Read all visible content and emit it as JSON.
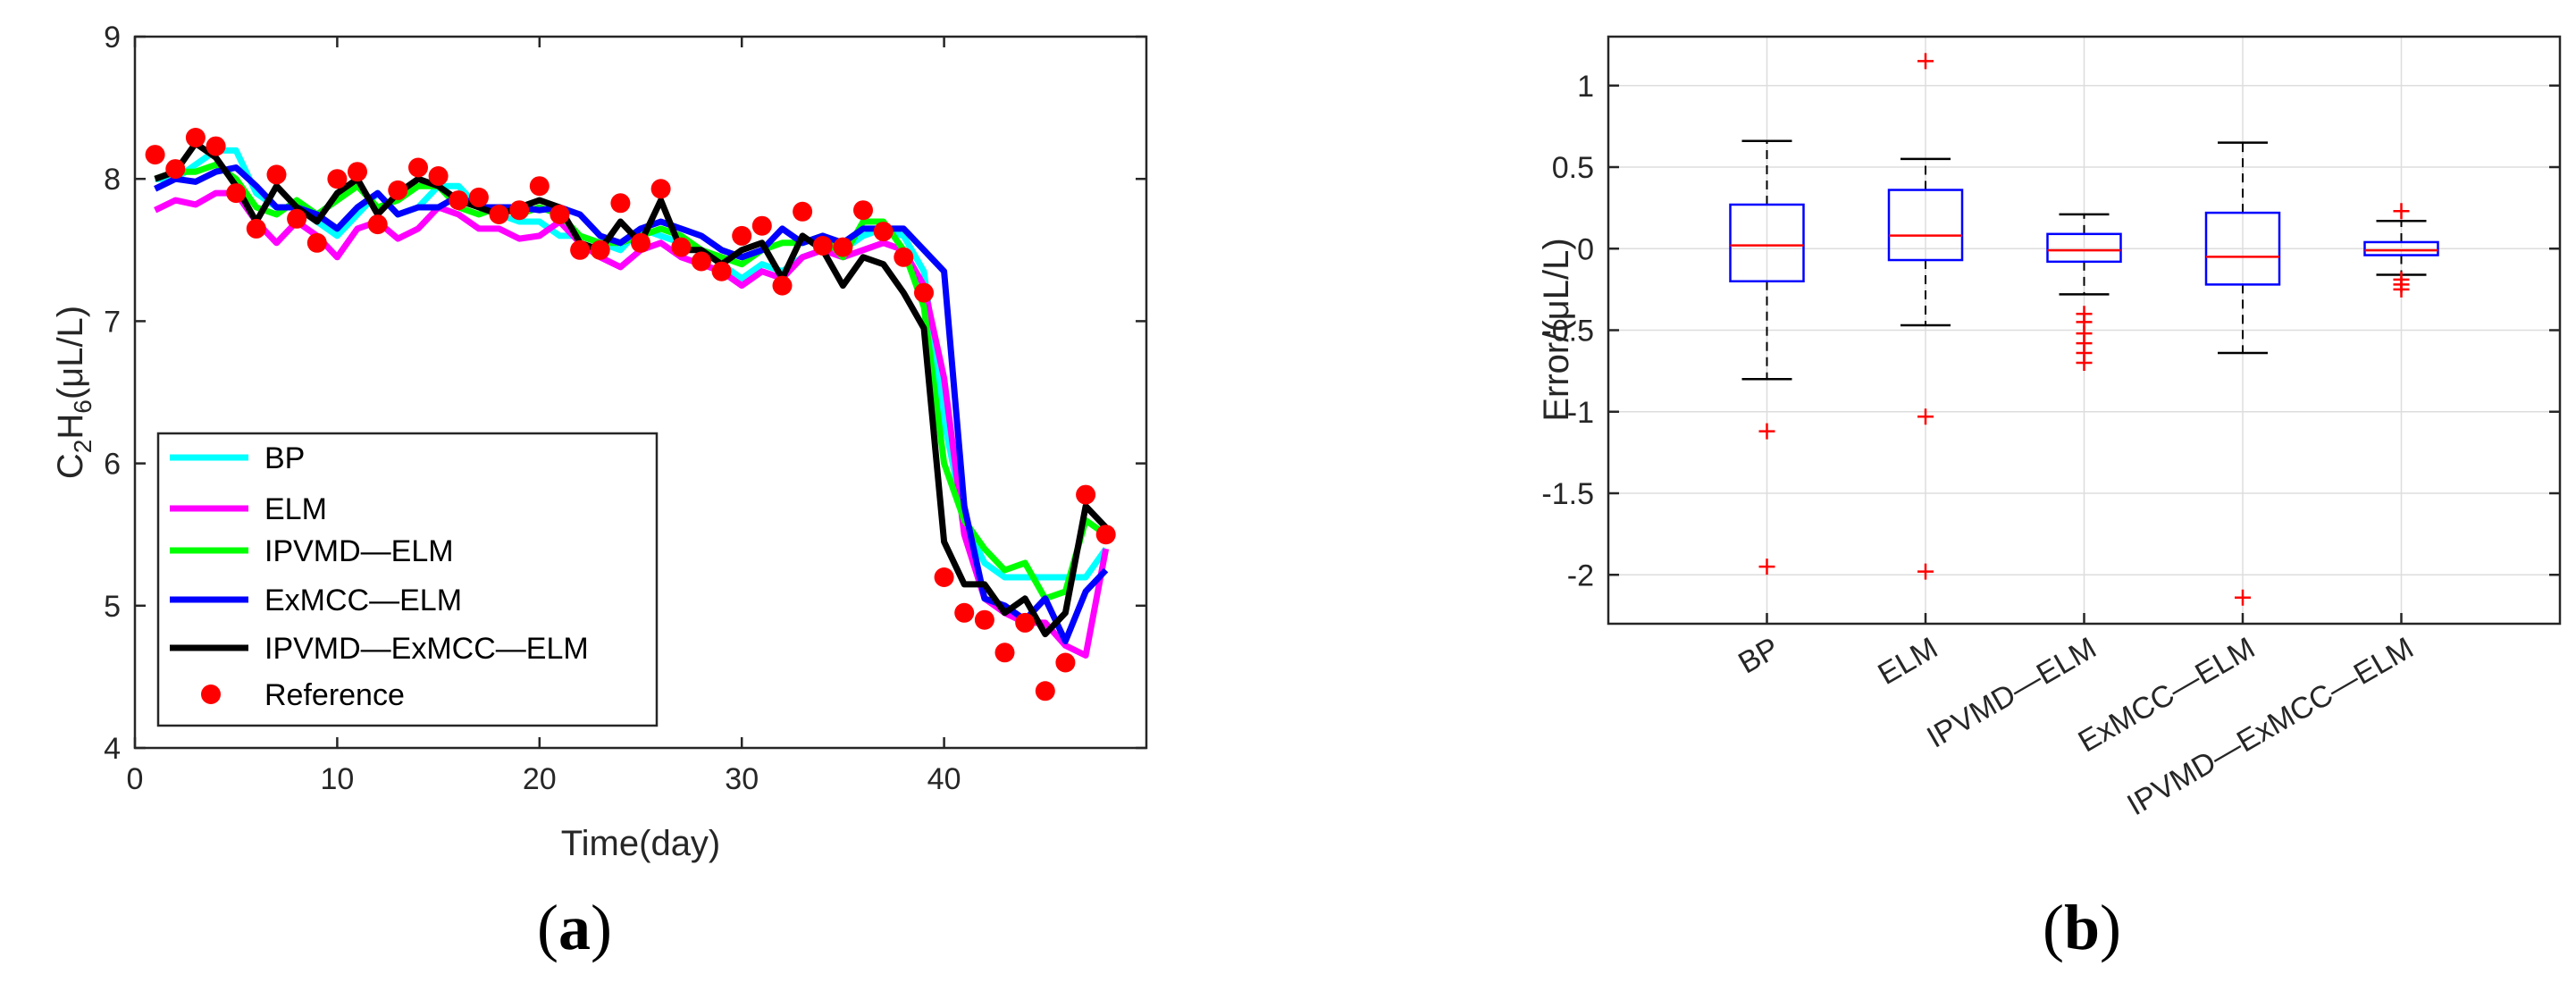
{
  "chart_data": [
    {
      "type": "line",
      "panel_label": "a",
      "xlabel": "Time(day)",
      "ylabel": {
        "base1": "C",
        "sub1": "2",
        "base2": "H",
        "sub2": "6",
        "rest": "(μL/L)"
      },
      "xlim": [
        0,
        50
      ],
      "ylim": [
        4,
        9
      ],
      "xticks": [
        0,
        10,
        20,
        30,
        40
      ],
      "yticks": [
        4,
        5,
        6,
        7,
        8,
        9
      ],
      "legend_position": "bottom-left",
      "series": [
        {
          "name": "BP",
          "color": "#00ffff",
          "x": [
            1,
            2,
            3,
            4,
            5,
            6,
            7,
            8,
            9,
            10,
            11,
            12,
            13,
            14,
            15,
            16,
            17,
            18,
            19,
            20,
            21,
            22,
            23,
            24,
            25,
            26,
            27,
            28,
            29,
            30,
            31,
            32,
            33,
            34,
            35,
            36,
            37,
            38,
            39,
            40,
            41,
            42,
            43,
            44,
            45,
            46,
            47,
            48
          ],
          "y": [
            8.0,
            8.0,
            8.1,
            8.2,
            8.2,
            7.9,
            7.8,
            7.8,
            7.7,
            7.6,
            7.75,
            7.9,
            7.75,
            7.8,
            7.95,
            7.95,
            7.8,
            7.75,
            7.7,
            7.7,
            7.6,
            7.6,
            7.55,
            7.5,
            7.65,
            7.6,
            7.55,
            7.5,
            7.4,
            7.3,
            7.4,
            7.35,
            7.45,
            7.5,
            7.5,
            7.6,
            7.65,
            7.6,
            7.35,
            6.3,
            5.6,
            5.3,
            5.2,
            5.2,
            5.2,
            5.2,
            5.2,
            5.4
          ]
        },
        {
          "name": "ELM",
          "color": "#ff00ff",
          "x": [
            1,
            2,
            3,
            4,
            5,
            6,
            7,
            8,
            9,
            10,
            11,
            12,
            13,
            14,
            15,
            16,
            17,
            18,
            19,
            20,
            21,
            22,
            23,
            24,
            25,
            26,
            27,
            28,
            29,
            30,
            31,
            32,
            33,
            34,
            35,
            36,
            37,
            38,
            39,
            40,
            41,
            42,
            43,
            44,
            45,
            46,
            47,
            48
          ],
          "y": [
            7.78,
            7.85,
            7.82,
            7.9,
            7.9,
            7.7,
            7.55,
            7.7,
            7.6,
            7.45,
            7.65,
            7.7,
            7.58,
            7.65,
            7.8,
            7.75,
            7.65,
            7.65,
            7.58,
            7.6,
            7.7,
            7.55,
            7.45,
            7.38,
            7.5,
            7.55,
            7.45,
            7.4,
            7.35,
            7.25,
            7.35,
            7.3,
            7.45,
            7.5,
            7.45,
            7.5,
            7.55,
            7.5,
            7.25,
            6.6,
            5.5,
            5.05,
            4.95,
            4.88,
            4.88,
            4.72,
            4.65,
            5.4
          ]
        },
        {
          "name": "IPVMD—ELM",
          "color": "#00ff00",
          "x": [
            1,
            2,
            3,
            4,
            5,
            6,
            7,
            8,
            9,
            10,
            11,
            12,
            13,
            14,
            15,
            16,
            17,
            18,
            19,
            20,
            21,
            22,
            23,
            24,
            25,
            26,
            27,
            28,
            29,
            30,
            31,
            32,
            33,
            34,
            35,
            36,
            37,
            38,
            39,
            40,
            41,
            42,
            43,
            44,
            45,
            46,
            47,
            48
          ],
          "y": [
            8.0,
            8.05,
            8.05,
            8.1,
            8.0,
            7.8,
            7.75,
            7.85,
            7.75,
            7.85,
            7.95,
            7.8,
            7.85,
            7.95,
            7.95,
            7.8,
            7.75,
            7.8,
            7.75,
            7.8,
            7.75,
            7.6,
            7.55,
            7.55,
            7.6,
            7.65,
            7.6,
            7.5,
            7.45,
            7.4,
            7.5,
            7.55,
            7.55,
            7.6,
            7.45,
            7.7,
            7.7,
            7.5,
            7.1,
            6.0,
            5.6,
            5.4,
            5.25,
            5.3,
            5.05,
            5.1,
            5.6,
            5.5
          ]
        },
        {
          "name": "ExMCC—ELM",
          "color": "#0000ff",
          "x": [
            1,
            2,
            3,
            4,
            5,
            6,
            7,
            8,
            9,
            10,
            11,
            12,
            13,
            14,
            15,
            16,
            17,
            18,
            19,
            20,
            21,
            22,
            23,
            24,
            25,
            26,
            27,
            28,
            29,
            30,
            31,
            32,
            33,
            34,
            35,
            36,
            37,
            38,
            39,
            40,
            41,
            42,
            43,
            44,
            45,
            46,
            47,
            48
          ],
          "y": [
            7.93,
            8.0,
            7.98,
            8.05,
            8.08,
            7.95,
            7.8,
            7.8,
            7.75,
            7.65,
            7.8,
            7.9,
            7.75,
            7.8,
            7.8,
            7.88,
            7.8,
            7.8,
            7.8,
            7.78,
            7.8,
            7.75,
            7.6,
            7.55,
            7.65,
            7.7,
            7.65,
            7.6,
            7.5,
            7.45,
            7.5,
            7.65,
            7.55,
            7.6,
            7.55,
            7.65,
            7.65,
            7.65,
            7.5,
            7.35,
            5.7,
            5.05,
            5.0,
            4.9,
            5.05,
            4.75,
            5.1,
            5.25
          ]
        },
        {
          "name": "IPVMD—ExMCC—ELM",
          "color": "#000000",
          "x": [
            1,
            2,
            3,
            4,
            5,
            6,
            7,
            8,
            9,
            10,
            11,
            12,
            13,
            14,
            15,
            16,
            17,
            18,
            19,
            20,
            21,
            22,
            23,
            24,
            25,
            26,
            27,
            28,
            29,
            30,
            31,
            32,
            33,
            34,
            35,
            36,
            37,
            38,
            39,
            40,
            41,
            42,
            43,
            44,
            45,
            46,
            47,
            48
          ],
          "y": [
            8.0,
            8.05,
            8.25,
            8.15,
            7.95,
            7.7,
            7.95,
            7.8,
            7.7,
            7.9,
            8.0,
            7.75,
            7.9,
            8.0,
            7.95,
            7.85,
            7.8,
            7.75,
            7.8,
            7.85,
            7.8,
            7.55,
            7.5,
            7.7,
            7.55,
            7.85,
            7.5,
            7.5,
            7.4,
            7.5,
            7.55,
            7.3,
            7.6,
            7.5,
            7.25,
            7.45,
            7.4,
            7.2,
            6.95,
            5.45,
            5.15,
            5.15,
            4.95,
            5.05,
            4.8,
            4.95,
            5.7,
            5.55
          ]
        }
      ],
      "reference": {
        "name": "Reference",
        "color": "#ff0000",
        "x": [
          1,
          2,
          3,
          4,
          5,
          6,
          7,
          8,
          9,
          10,
          11,
          12,
          13,
          14,
          15,
          16,
          17,
          18,
          19,
          20,
          21,
          22,
          23,
          24,
          25,
          26,
          27,
          28,
          29,
          30,
          31,
          32,
          33,
          34,
          35,
          36,
          37,
          38,
          39,
          40,
          41,
          42,
          43,
          44,
          45,
          46,
          47,
          48
        ],
        "y": [
          8.17,
          8.07,
          8.29,
          8.23,
          7.9,
          7.65,
          8.03,
          7.72,
          7.55,
          8.0,
          8.05,
          7.68,
          7.92,
          8.08,
          8.02,
          7.85,
          7.87,
          7.75,
          7.78,
          7.95,
          7.75,
          7.5,
          7.5,
          7.83,
          7.55,
          7.93,
          7.52,
          7.42,
          7.35,
          7.6,
          7.67,
          7.25,
          7.77,
          7.53,
          7.52,
          7.78,
          7.63,
          7.45,
          7.2,
          5.2,
          4.95,
          4.9,
          4.67,
          4.88,
          4.4,
          4.6,
          5.78,
          5.5
        ]
      }
    },
    {
      "type": "boxplot",
      "panel_label": "b",
      "ylabel": "Error/(μL/L)",
      "ylim": [
        -2.3,
        1.3
      ],
      "yticks": [
        1,
        0.5,
        0,
        -0.5,
        -1,
        -1.5,
        -2
      ],
      "ytick_labels": [
        "1",
        "0.5",
        "0",
        "-0.5",
        "-1",
        "-1.5",
        "-2"
      ],
      "grid": true,
      "box_color": "#0000ff",
      "median_color": "#ff0000",
      "whisker_color": "#000000",
      "outlier_color": "#ff0000",
      "boxes": [
        {
          "label": "BP",
          "q1": -0.2,
          "median": 0.02,
          "q3": 0.27,
          "whisker_low": -0.8,
          "whisker_high": 0.66,
          "outliers": [
            -1.12,
            -1.95
          ]
        },
        {
          "label": "ELM",
          "q1": -0.07,
          "median": 0.08,
          "q3": 0.36,
          "whisker_low": -0.47,
          "whisker_high": 0.55,
          "outliers": [
            1.15,
            -1.03,
            -1.98
          ]
        },
        {
          "label": "IPVMD—ELM",
          "q1": -0.08,
          "median": -0.01,
          "q3": 0.09,
          "whisker_low": -0.28,
          "whisker_high": 0.21,
          "outliers": [
            -0.4,
            -0.45,
            -0.52,
            -0.58,
            -0.64,
            -0.7
          ]
        },
        {
          "label": "ExMCC—ELM",
          "q1": -0.22,
          "median": -0.05,
          "q3": 0.22,
          "whisker_low": -0.64,
          "whisker_high": 0.65,
          "outliers": [
            -2.14
          ]
        },
        {
          "label": "IPVMD—ExMCC—ELM",
          "q1": -0.04,
          "median": -0.01,
          "q3": 0.04,
          "whisker_low": -0.16,
          "whisker_high": 0.17,
          "outliers": [
            0.23,
            -0.19,
            -0.22,
            -0.25
          ]
        }
      ]
    }
  ]
}
